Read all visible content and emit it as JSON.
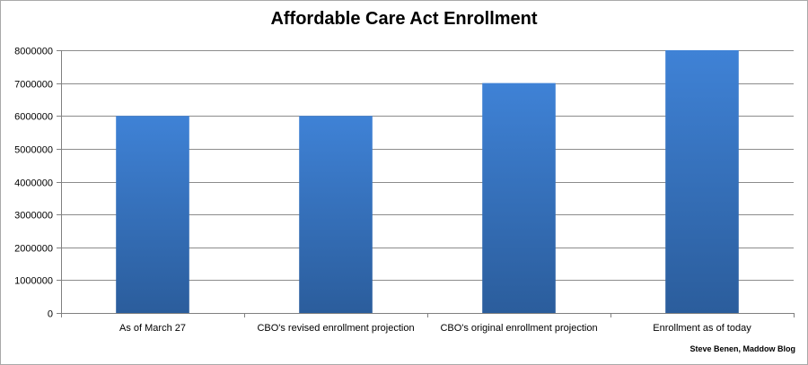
{
  "chart_data": {
    "type": "bar",
    "title": "Affordable Care Act Enrollment",
    "categories": [
      "As of March 27",
      "CBO's revised enrollment projection",
      "CBO's original enrollment projection",
      "Enrollment as of today"
    ],
    "values": [
      6000000,
      6000000,
      7000000,
      8000000
    ],
    "ylim": [
      0,
      8000000
    ],
    "yticks": [
      0,
      1000000,
      2000000,
      3000000,
      4000000,
      5000000,
      6000000,
      7000000,
      8000000
    ],
    "ytick_labels": [
      "0",
      "1000000",
      "2000000",
      "3000000",
      "4000000",
      "5000000",
      "6000000",
      "7000000",
      "8000000"
    ],
    "grid": true,
    "legend": "none",
    "bar_color_top": "#3f82d6",
    "bar_color_bottom": "#2b5d9c",
    "grid_color": "#8c8c8c"
  },
  "credit": "Steve Benen, Maddow Blog"
}
